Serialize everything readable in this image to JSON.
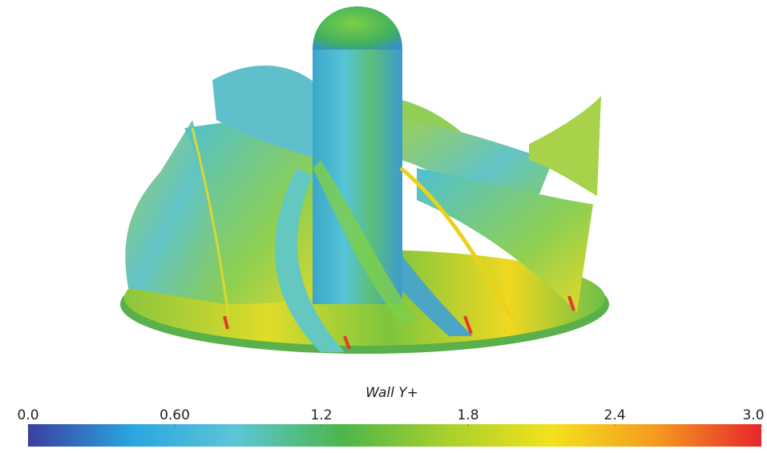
{
  "chart_data": {
    "type": "colorbar",
    "title": "Wall Y+",
    "xlim": [
      0,
      3
    ],
    "xticks": [
      {
        "value": 0,
        "label": "0.0"
      },
      {
        "value": 0.6,
        "label": "0.60"
      },
      1.2,
      1.8,
      2.4,
      {
        "value": 3,
        "label": "3.0"
      }
    ],
    "colors": [
      "#3b3f9e",
      "#2aa6e0",
      "#5cc6d6",
      "#4cb64a",
      "#a9d02c",
      "#f3e21c",
      "#f59a20",
      "#e6262b"
    ]
  }
}
